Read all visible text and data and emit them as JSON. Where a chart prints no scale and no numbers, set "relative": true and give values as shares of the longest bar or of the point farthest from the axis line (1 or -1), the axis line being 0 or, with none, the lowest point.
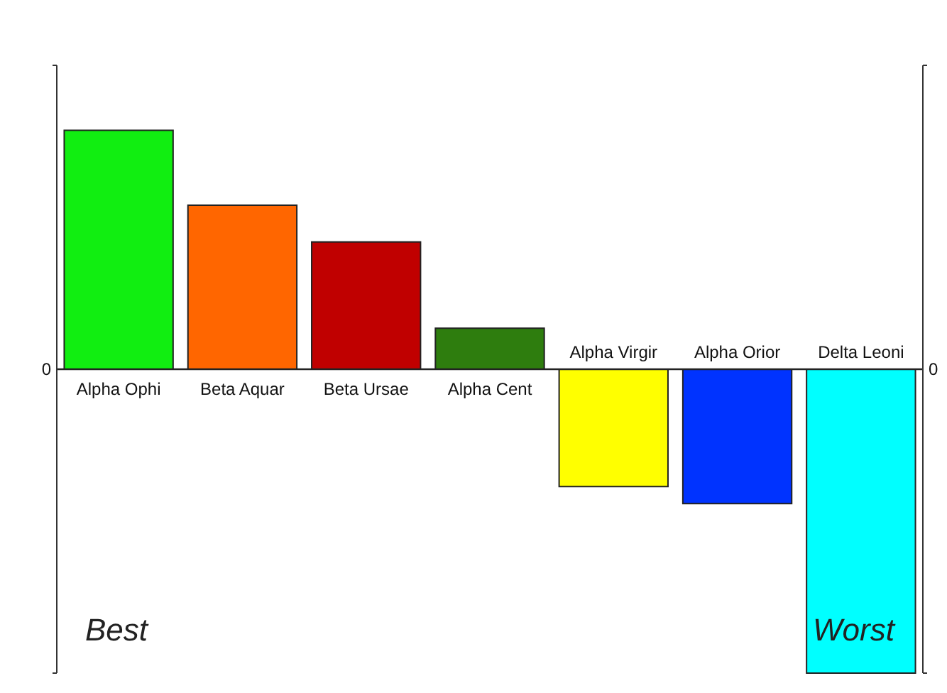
{
  "chart_data": {
    "type": "bar",
    "relative": true,
    "categories": [
      "Alpha Ophi",
      "Beta Aquar",
      "Beta Ursae",
      "Alpha Cent",
      "Alpha Virgir",
      "Alpha Orior",
      "Delta Leoni"
    ],
    "values": [
      0.786,
      0.54,
      0.419,
      0.135,
      -0.386,
      -0.442,
      -1
    ],
    "colors": [
      "#11ee11",
      "#ff6600",
      "#c00000",
      "#2e7d0e",
      "#ffff00",
      "#0033ff",
      "#00ffff"
    ],
    "annotations": [
      "0",
      "0",
      "Best",
      "Worst"
    ]
  }
}
